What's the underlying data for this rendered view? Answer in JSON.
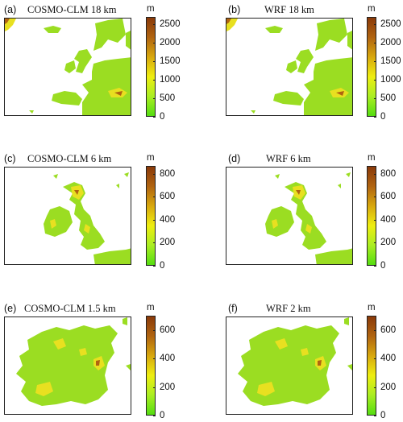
{
  "panels": [
    {
      "letter": "(a)",
      "title": "COSMO-CLM 18 km",
      "unit": "m",
      "colorbar_ticks": [
        "2500",
        "2000",
        "1500",
        "1000",
        "500",
        "0"
      ],
      "vmax": 2700,
      "region": "europe"
    },
    {
      "letter": "(b)",
      "title": "WRF 18 km",
      "unit": "m",
      "colorbar_ticks": [
        "2500",
        "2000",
        "1500",
        "1000",
        "500",
        "0"
      ],
      "vmax": 2700,
      "region": "europe"
    },
    {
      "letter": "(c)",
      "title": "COSMO-CLM 6 km",
      "unit": "m",
      "colorbar_ticks": [
        "800",
        "600",
        "400",
        "200",
        "0"
      ],
      "vmax": 870,
      "region": "british-isles"
    },
    {
      "letter": "(d)",
      "title": "WRF 6 km",
      "unit": "m",
      "colorbar_ticks": [
        "800",
        "600",
        "400",
        "200",
        "0"
      ],
      "vmax": 870,
      "region": "british-isles"
    },
    {
      "letter": "(e)",
      "title": "COSMO-CLM 1.5 km",
      "unit": "m",
      "colorbar_ticks": [
        "600",
        "400",
        "200",
        "0"
      ],
      "vmax": 700,
      "region": "ireland"
    },
    {
      "letter": "(f)",
      "title": "WRF 2 km",
      "unit": "m",
      "colorbar_ticks": [
        "600",
        "400",
        "200",
        "0"
      ],
      "vmax": 700,
      "region": "ireland"
    }
  ],
  "colors": {
    "colormap": [
      "#55dd11",
      "#aaee22",
      "#eeee11",
      "#d8a80e",
      "#b06410",
      "#8a3a0a"
    ],
    "land": "#9bdd22",
    "highland": "#e8e020",
    "frame": "#222222"
  }
}
